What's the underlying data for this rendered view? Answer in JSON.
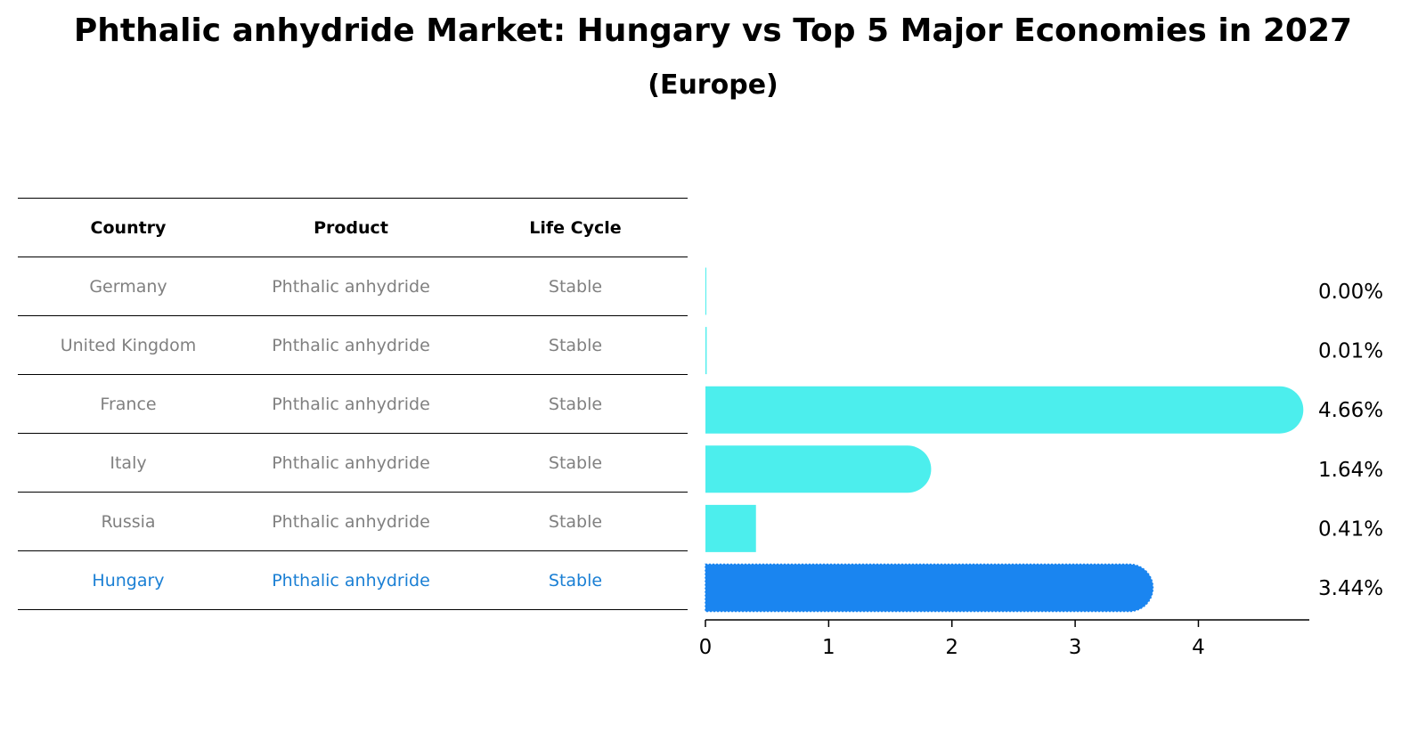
{
  "title": "Phthalic anhydride Market: Hungary vs Top 5 Major Economies in 2027",
  "subtitle": "(Europe)",
  "table": {
    "headers": [
      "Country",
      "Product",
      "Life Cycle"
    ],
    "rows": [
      [
        "Germany",
        "Phthalic anhydride",
        "Stable"
      ],
      [
        "United Kingdom",
        "Phthalic anhydride",
        "Stable"
      ],
      [
        "France",
        "Phthalic anhydride",
        "Stable"
      ],
      [
        "Italy",
        "Phthalic anhydride",
        "Stable"
      ],
      [
        "Russia",
        "Phthalic anhydride",
        "Stable"
      ],
      [
        "Hungary",
        "Phthalic anhydride",
        "Stable"
      ]
    ]
  },
  "colors": {
    "bar": "#4ceeed",
    "highlight_bar": "#1a85f0",
    "highlight_text": "#1a7fd4",
    "muted_text": "#808080"
  },
  "chart_data": {
    "type": "bar",
    "orientation": "horizontal",
    "categories": [
      "Germany",
      "United Kingdom",
      "France",
      "Italy",
      "Russia",
      "Hungary"
    ],
    "values": [
      0.0,
      0.01,
      4.66,
      1.64,
      0.41,
      3.44
    ],
    "value_labels": [
      "0.00%",
      "0.01%",
      "4.66%",
      "1.64%",
      "0.41%",
      "3.44%"
    ],
    "highlight": "Hungary",
    "xlim": [
      0,
      4.9
    ],
    "xticks": [
      0,
      1,
      2,
      3,
      4
    ],
    "xtick_labels": [
      "0",
      "1",
      "2",
      "3",
      "4"
    ],
    "xlabel": "",
    "ylabel": ""
  }
}
